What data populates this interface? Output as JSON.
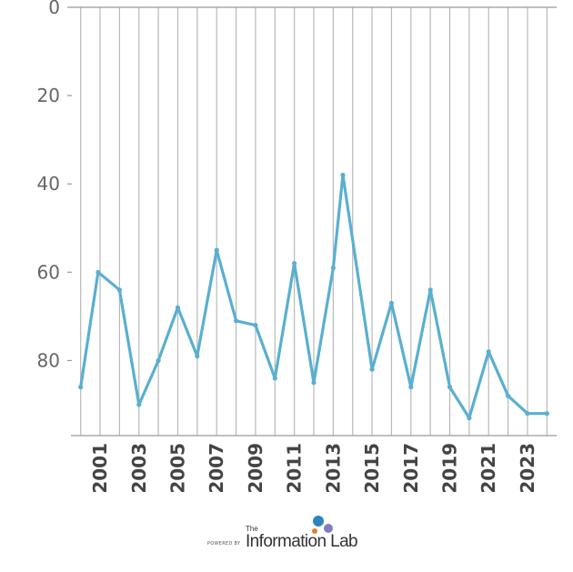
{
  "chart_data": {
    "type": "line",
    "title": "",
    "xlabel": "",
    "ylabel": "",
    "y_inverted": true,
    "ylim": [
      0,
      97
    ],
    "xlim": [
      1999.5,
      2024.5
    ],
    "yticks": [
      0,
      20,
      40,
      60,
      80
    ],
    "ytick_labels": [
      "0",
      "20",
      "40",
      "60",
      "80"
    ],
    "xticks": [
      2001,
      2003,
      2005,
      2007,
      2009,
      2011,
      2013,
      2015,
      2017,
      2019,
      2021,
      2023
    ],
    "xtick_labels": [
      "2001",
      "2003",
      "2005",
      "2007",
      "2009",
      "2011",
      "2013",
      "2015",
      "2017",
      "2019",
      "2021",
      "2023"
    ],
    "vertical_gridlines": [
      2000,
      2001,
      2002,
      2003,
      2004,
      2005,
      2006,
      2007,
      2008,
      2009,
      2010,
      2011,
      2012,
      2013,
      2014,
      2015,
      2016,
      2017,
      2018,
      2019,
      2020,
      2021,
      2022,
      2023,
      2024
    ],
    "grid": "vertical",
    "legend": "none",
    "color": "#5aafd0",
    "points": [
      [
        2000,
        86
      ],
      [
        2000.9,
        60
      ],
      [
        2002,
        64
      ],
      [
        2003,
        90
      ],
      [
        2004,
        80
      ],
      [
        2005,
        68
      ],
      [
        2006,
        79
      ],
      [
        2007,
        55
      ],
      [
        2008,
        71
      ],
      [
        2009,
        72
      ],
      [
        2010,
        84
      ],
      [
        2011,
        58
      ],
      [
        2012,
        85
      ],
      [
        2013,
        59
      ],
      [
        2013.5,
        38
      ],
      [
        2015,
        82
      ],
      [
        2016,
        67
      ],
      [
        2017,
        86
      ],
      [
        2018,
        64
      ],
      [
        2019,
        86
      ],
      [
        2020,
        93
      ],
      [
        2021,
        78
      ],
      [
        2022,
        88
      ],
      [
        2023,
        92
      ],
      [
        2024,
        92
      ]
    ]
  },
  "footer": {
    "powered_by": "POWERED BY",
    "the": "The",
    "brand": "Information Lab",
    "dot_colors": [
      "#2e86c1",
      "#e67e22",
      "#7f7fbf"
    ]
  }
}
